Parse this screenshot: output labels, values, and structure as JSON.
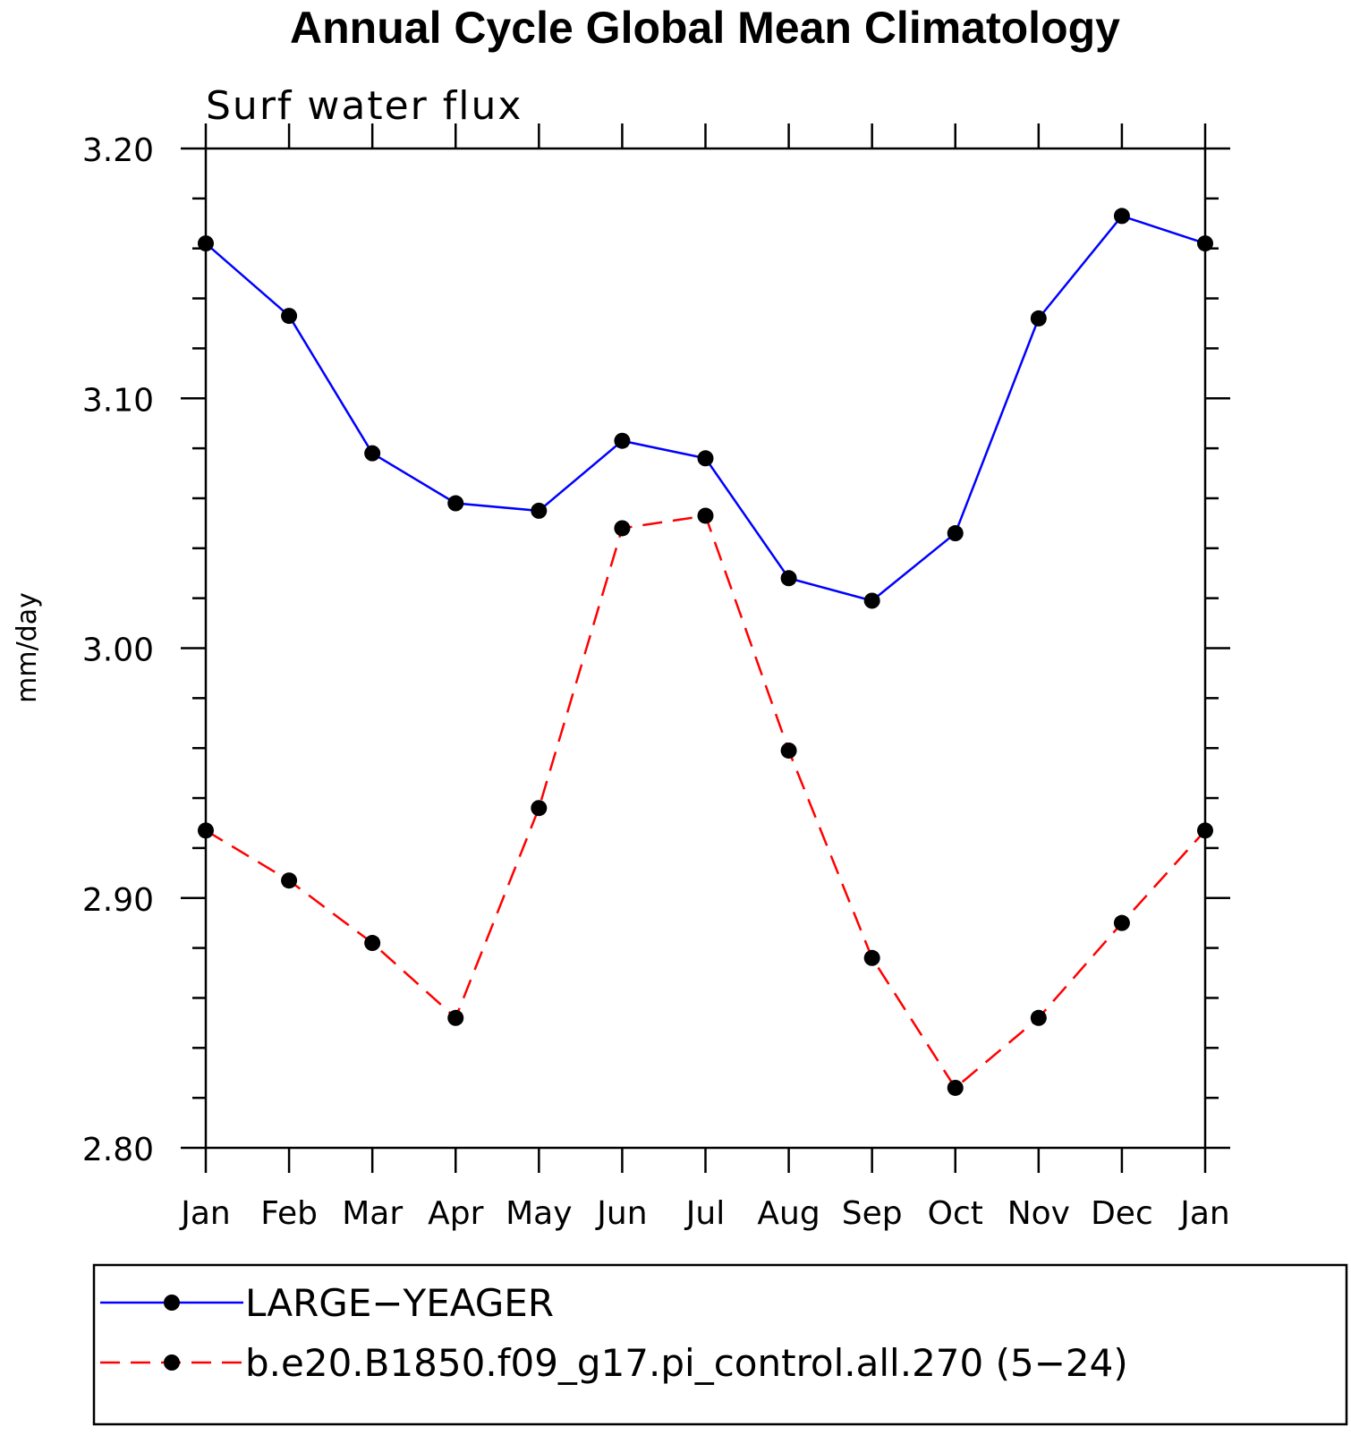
{
  "chart_data": {
    "type": "line",
    "title": "Annual Cycle Global Mean Climatology",
    "subtitle": "Surf water flux",
    "xlabel": "",
    "ylabel": "mm/day",
    "categories": [
      "Jan",
      "Feb",
      "Mar",
      "Apr",
      "May",
      "Jun",
      "Jul",
      "Aug",
      "Sep",
      "Oct",
      "Nov",
      "Dec",
      "Jan"
    ],
    "ylim": [
      2.8,
      3.2
    ],
    "yticks": [
      "2.80",
      "2.90",
      "3.00",
      "3.10",
      "3.20"
    ],
    "ymajor": [
      2.8,
      2.9,
      3.0,
      3.1,
      3.2
    ],
    "yminor_step": 0.02,
    "grid": false,
    "legend_position": "bottom",
    "series": [
      {
        "name": "LARGE−YEAGER",
        "color": "#0000ff",
        "dash": "solid",
        "values": [
          3.162,
          3.133,
          3.078,
          3.058,
          3.055,
          3.083,
          3.076,
          3.028,
          3.019,
          3.046,
          3.132,
          3.173,
          3.162
        ]
      },
      {
        "name": "b.e20.B1850.f09_g17.pi_control.all.270 (5−24)",
        "color": "#ff0000",
        "dash": "dashed",
        "values": [
          2.927,
          2.907,
          2.882,
          2.852,
          2.936,
          3.048,
          3.053,
          2.959,
          2.876,
          2.824,
          2.852,
          2.89,
          2.927
        ]
      }
    ]
  }
}
